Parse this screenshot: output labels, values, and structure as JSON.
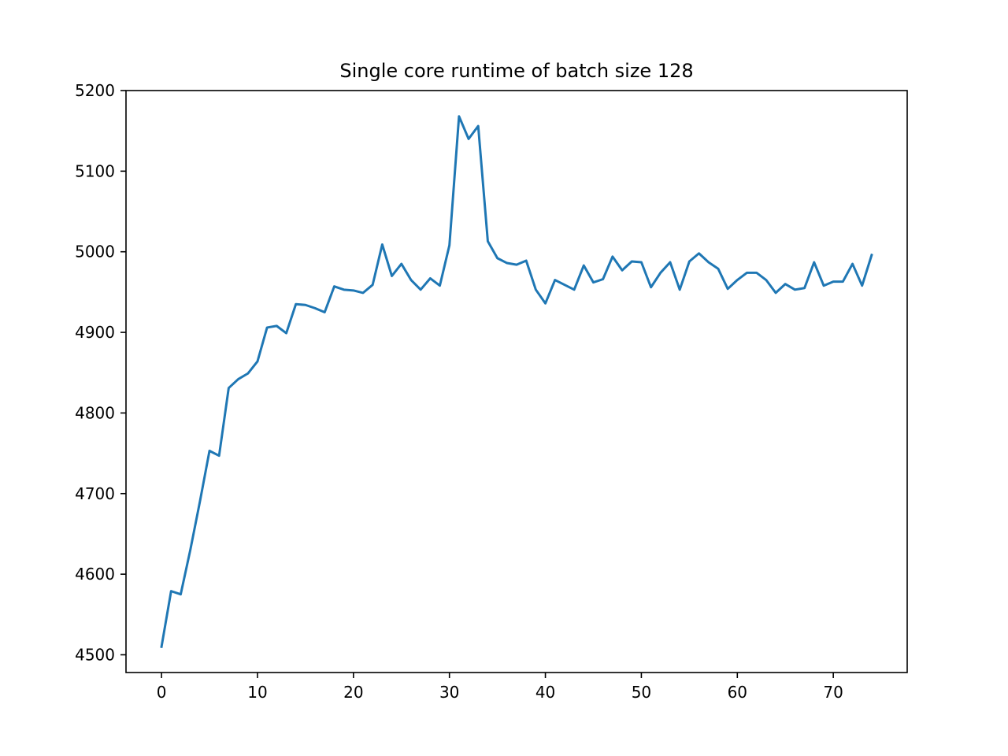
{
  "chart_data": {
    "type": "line",
    "title": "Single core runtime of batch size 128",
    "xlabel": "",
    "ylabel": "",
    "xlim": [
      -3.7,
      77.7
    ],
    "ylim": [
      4478,
      5200
    ],
    "grid": false,
    "legend": "none",
    "x_ticks": [
      0,
      10,
      20,
      30,
      40,
      50,
      60,
      70
    ],
    "y_ticks": [
      4500,
      4600,
      4700,
      4800,
      4900,
      5000,
      5100,
      5200
    ],
    "x_tick_labels": [
      "0",
      "10",
      "20",
      "30",
      "40",
      "50",
      "60",
      "70"
    ],
    "y_tick_labels": [
      "4500",
      "4600",
      "4700",
      "4800",
      "4900",
      "5000",
      "5100",
      "5200"
    ],
    "series": [
      {
        "color": "#1f77b4",
        "x": [
          0,
          1,
          2,
          3,
          4,
          5,
          6,
          7,
          8,
          9,
          10,
          11,
          12,
          13,
          14,
          15,
          16,
          17,
          18,
          19,
          20,
          21,
          22,
          23,
          24,
          25,
          26,
          27,
          28,
          29,
          30,
          31,
          32,
          33,
          34,
          35,
          36,
          37,
          38,
          39,
          40,
          41,
          42,
          43,
          44,
          45,
          46,
          47,
          48,
          49,
          50,
          51,
          52,
          53,
          54,
          55,
          56,
          57,
          58,
          59,
          60,
          61,
          62,
          63,
          64,
          65,
          66,
          67,
          68,
          69,
          70,
          71,
          72,
          73,
          74
        ],
        "values": [
          4510,
          4579,
          4575,
          4630,
          4690,
          4753,
          4747,
          4831,
          4842,
          4849,
          4864,
          4906,
          4908,
          4899,
          4935,
          4934,
          4930,
          4925,
          4957,
          4953,
          4952,
          4949,
          4959,
          5009,
          4970,
          4985,
          4965,
          4953,
          4967,
          4958,
          5008,
          5168,
          5140,
          5156,
          5013,
          4992,
          4986,
          4984,
          4989,
          4953,
          4936,
          4965,
          4959,
          4953,
          4983,
          4962,
          4966,
          4994,
          4977,
          4988,
          4987,
          4956,
          4974,
          4987,
          4953,
          4988,
          4998,
          4987,
          4979,
          4954,
          4965,
          4974,
          4974,
          4965,
          4949,
          4960,
          4953,
          4955,
          4987,
          4958,
          4963,
          4963,
          4985,
          4958,
          4996
        ]
      }
    ]
  }
}
